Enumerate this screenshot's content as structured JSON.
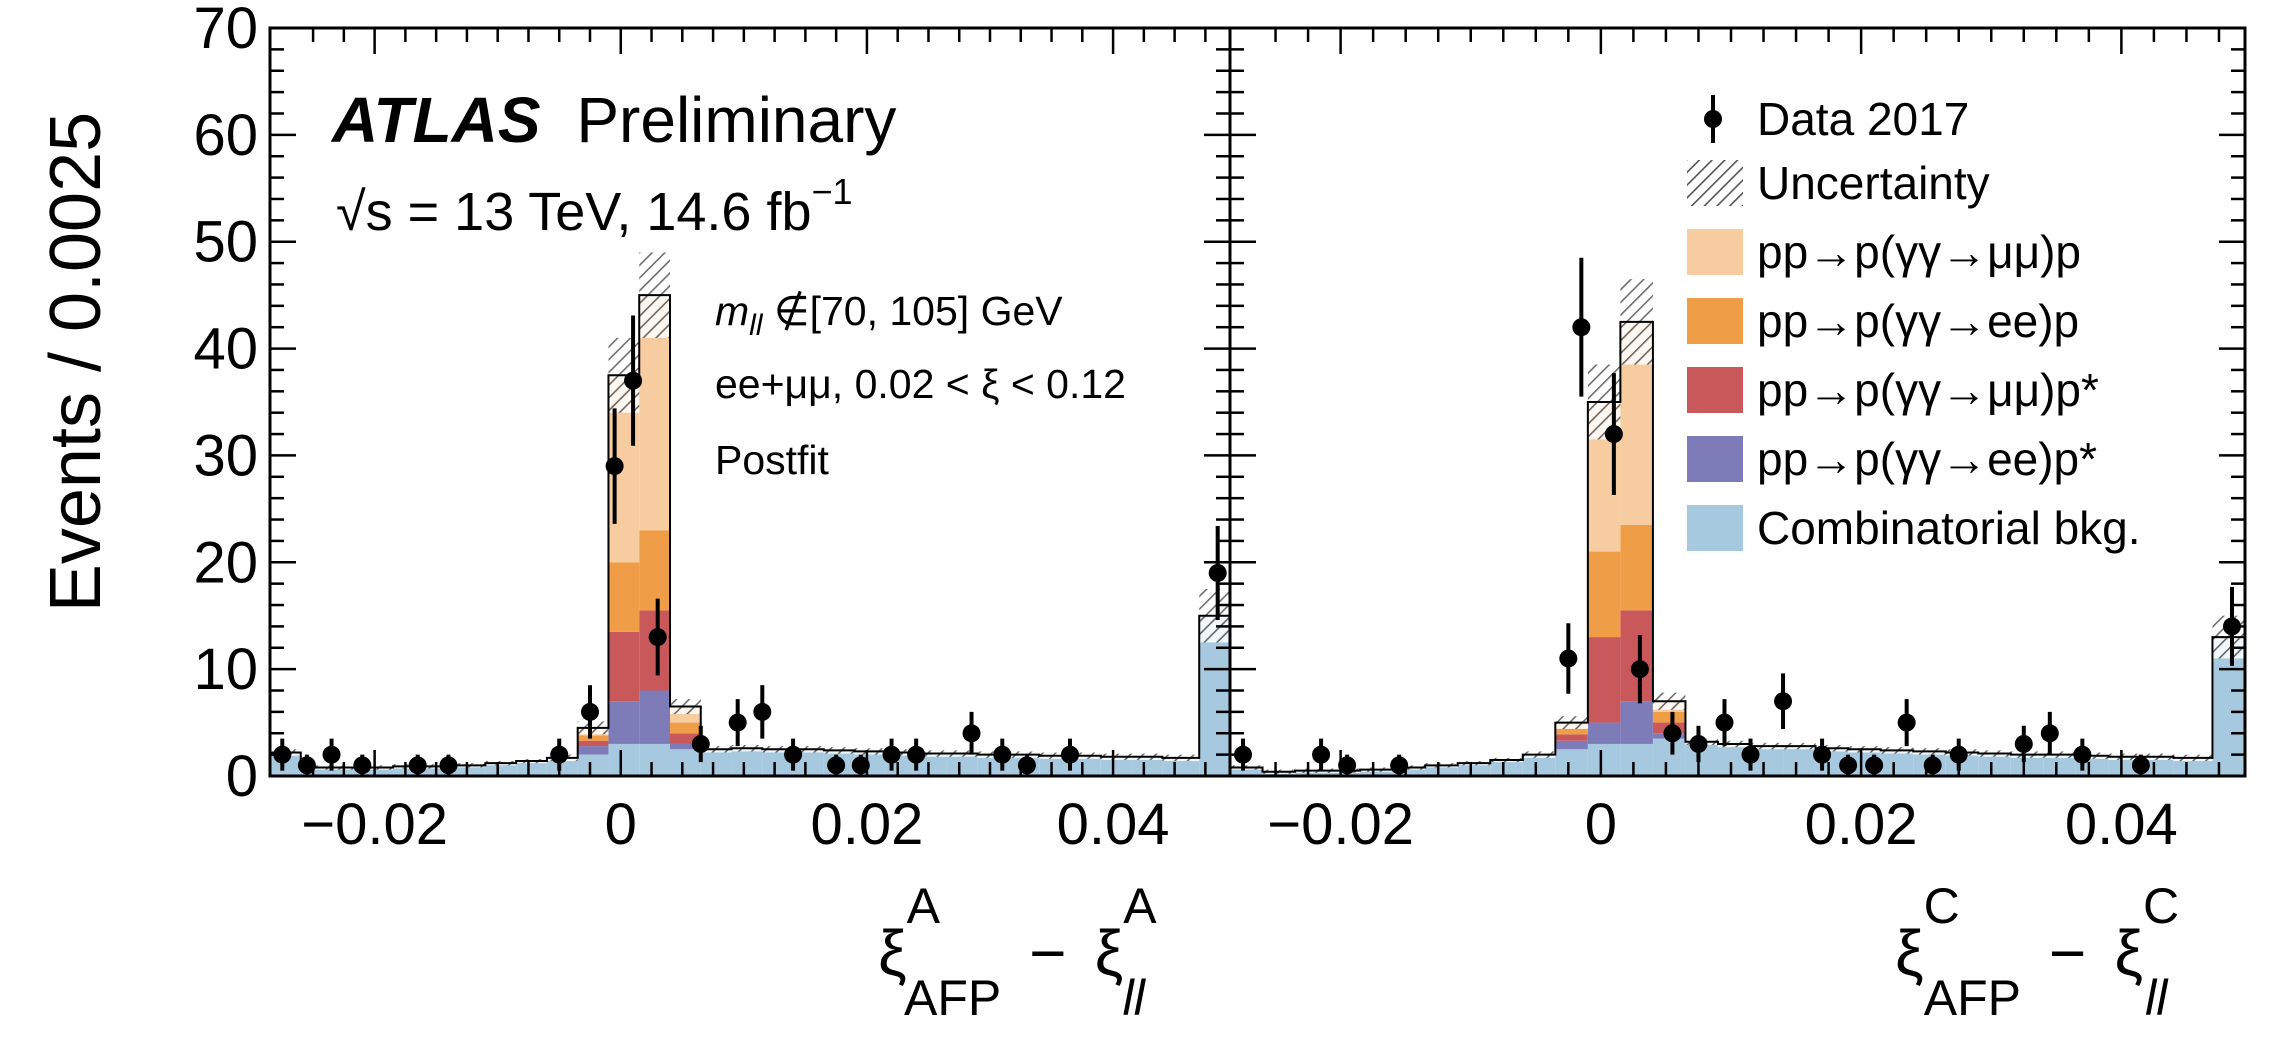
{
  "colors": {
    "mumu_elastic": "#f6cca0",
    "ee_elastic": "#f09d48",
    "mumu_single_diss": "#c8585a",
    "ee_single_diss": "#7e7cb8",
    "combinatorial": "#a7c9e0",
    "data": "#000000"
  },
  "annotations": {
    "atlas": "ATLAS",
    "preliminary": "Preliminary",
    "energy": "√s = 13 TeV, 14.6 fb",
    "energy_exp": "−1",
    "mass_cut_sym": "m",
    "mass_cut_sub": "ll",
    "mass_cut_rest": " ∉[70, 105] GeV",
    "selection": "ee+μμ, 0.02 < ξ < 0.12",
    "fit": "Postfit"
  },
  "legend": {
    "data": "Data 2017",
    "unc": "Uncertainty",
    "mumu_elastic": "pp→p(γγ→μμ)p",
    "ee_elastic": "pp→p(γγ→ee)p",
    "mumu_single_diss": "pp→p(γγ→μμ)p*",
    "ee_single_diss": "pp→p(γγ→ee)p*",
    "combinatorial": "Combinatorial bkg."
  },
  "chart_data": [
    {
      "type": "bar",
      "panel": "A",
      "ylabel": "Events / 0.0025",
      "xlabel": {
        "base": "ξ",
        "sup1": "A",
        "sub1": "AFP",
        "minus": "−",
        "sup2": "A",
        "sub2": "ll"
      },
      "xlim": [
        -0.0285,
        0.0495
      ],
      "ylim": [
        0,
        70
      ],
      "xticks": [
        -0.02,
        0,
        0.02,
        0.04
      ],
      "xtick_labels": [
        "−0.02",
        "0",
        "0.02",
        "0.04"
      ],
      "yticks": [
        0,
        10,
        20,
        30,
        40,
        50,
        60,
        70
      ],
      "ytick_labels": [
        "0",
        "10",
        "20",
        "30",
        "40",
        "50",
        "60",
        "70"
      ],
      "bin_width": 0.0025,
      "bin_edges": [
        -0.0285,
        -0.026,
        -0.0235,
        -0.021,
        -0.0185,
        -0.016,
        -0.0135,
        -0.011,
        -0.0085,
        -0.006,
        -0.0035,
        -0.001,
        0.0015,
        0.004,
        0.0065,
        0.009,
        0.0115,
        0.014,
        0.0165,
        0.019,
        0.0215,
        0.024,
        0.0265,
        0.029,
        0.0315,
        0.034,
        0.0365,
        0.039,
        0.0415,
        0.044,
        0.047,
        0.0495
      ],
      "stack": {
        "combinatorial": [
          2.2,
          0.8,
          0.8,
          0.8,
          0.9,
          0.9,
          1.0,
          1.2,
          1.4,
          1.7,
          2.0,
          3.0,
          3.0,
          2.5,
          2.5,
          2.6,
          2.5,
          2.5,
          2.4,
          2.3,
          2.2,
          2.1,
          2.1,
          2.0,
          2.0,
          1.9,
          1.9,
          1.8,
          1.8,
          1.7,
          15.0
        ],
        "ee_single_diss": [
          0,
          0,
          0,
          0,
          0,
          0,
          0,
          0,
          0,
          0,
          0.8,
          4.0,
          5.0,
          0.5,
          0,
          0,
          0,
          0,
          0,
          0,
          0,
          0,
          0,
          0,
          0,
          0,
          0,
          0,
          0,
          0,
          0
        ],
        "mumu_single_diss": [
          0,
          0,
          0,
          0,
          0,
          0,
          0,
          0,
          0,
          0,
          0.5,
          6.5,
          7.5,
          1.0,
          0,
          0,
          0,
          0,
          0,
          0,
          0,
          0,
          0,
          0,
          0,
          0,
          0,
          0,
          0,
          0,
          0
        ],
        "ee_elastic": [
          0,
          0,
          0,
          0,
          0,
          0,
          0,
          0,
          0,
          0,
          0.5,
          6.5,
          7.5,
          1.0,
          0,
          0,
          0,
          0,
          0,
          0,
          0,
          0,
          0,
          0,
          0,
          0,
          0,
          0,
          0,
          0,
          0
        ],
        "mumu_elastic": [
          0,
          0,
          0,
          0,
          0,
          0,
          0,
          0,
          0,
          0,
          0.7,
          17.5,
          22.0,
          1.5,
          0,
          0,
          0,
          0,
          0,
          0,
          0,
          0,
          0,
          0,
          0,
          0,
          0,
          0,
          0,
          0,
          0
        ]
      },
      "uncertainty": [
        0.3,
        0.2,
        0.2,
        0.2,
        0.2,
        0.2,
        0.2,
        0.2,
        0.2,
        0.3,
        0.6,
        3.5,
        4.0,
        0.7,
        0.3,
        0.3,
        0.3,
        0.3,
        0.3,
        0.3,
        0.3,
        0.3,
        0.3,
        0.3,
        0.3,
        0.3,
        0.3,
        0.3,
        0.3,
        0.3,
        2.5
      ],
      "data_points": [
        {
          "x": -0.0275,
          "y": 2,
          "err": 1.5
        },
        {
          "x": -0.0255,
          "y": 1,
          "err": 1.0
        },
        {
          "x": -0.0235,
          "y": 2,
          "err": 1.5
        },
        {
          "x": -0.021,
          "y": 1,
          "err": 1.0
        },
        {
          "x": -0.0165,
          "y": 1,
          "err": 1.0
        },
        {
          "x": -0.014,
          "y": 1,
          "err": 1.0
        },
        {
          "x": -0.005,
          "y": 2,
          "err": 1.5
        },
        {
          "x": -0.0025,
          "y": 6,
          "err": 2.5
        },
        {
          "x": -0.0005,
          "y": 29,
          "err": 5.4
        },
        {
          "x": 0.001,
          "y": 37,
          "err": 6.1
        },
        {
          "x": 0.003,
          "y": 13,
          "err": 3.6
        },
        {
          "x": 0.0065,
          "y": 3,
          "err": 1.7
        },
        {
          "x": 0.0095,
          "y": 5,
          "err": 2.2
        },
        {
          "x": 0.0115,
          "y": 6,
          "err": 2.5
        },
        {
          "x": 0.014,
          "y": 2,
          "err": 1.5
        },
        {
          "x": 0.0175,
          "y": 1,
          "err": 1.0
        },
        {
          "x": 0.0195,
          "y": 1,
          "err": 1.0
        },
        {
          "x": 0.022,
          "y": 2,
          "err": 1.5
        },
        {
          "x": 0.024,
          "y": 2,
          "err": 1.5
        },
        {
          "x": 0.0285,
          "y": 4,
          "err": 2.0
        },
        {
          "x": 0.031,
          "y": 2,
          "err": 1.5
        },
        {
          "x": 0.033,
          "y": 1,
          "err": 1.0
        },
        {
          "x": 0.0365,
          "y": 2,
          "err": 1.5
        },
        {
          "x": 0.0485,
          "y": 19,
          "err": 4.4
        }
      ]
    },
    {
      "type": "bar",
      "panel": "C",
      "xlabel": {
        "base": "ξ",
        "sup1": "C",
        "sub1": "AFP",
        "minus": "−",
        "sup2": "C",
        "sub2": "ll"
      },
      "xlim": [
        -0.0285,
        0.0495
      ],
      "ylim": [
        0,
        70
      ],
      "xticks": [
        -0.02,
        0,
        0.02,
        0.04
      ],
      "xtick_labels": [
        "−0.02",
        "0",
        "0.02",
        "0.04"
      ],
      "bin_width": 0.0025,
      "bin_edges": [
        -0.0285,
        -0.026,
        -0.0235,
        -0.021,
        -0.0185,
        -0.016,
        -0.0135,
        -0.011,
        -0.0085,
        -0.006,
        -0.0035,
        -0.001,
        0.0015,
        0.004,
        0.0065,
        0.009,
        0.0115,
        0.014,
        0.0165,
        0.019,
        0.0215,
        0.024,
        0.0265,
        0.029,
        0.0315,
        0.034,
        0.0365,
        0.039,
        0.0415,
        0.044,
        0.047,
        0.0495
      ],
      "stack": {
        "combinatorial": [
          0.8,
          0.4,
          0.5,
          0.5,
          0.6,
          0.8,
          1.0,
          1.2,
          1.5,
          2.0,
          2.5,
          3.0,
          3.0,
          3.5,
          3.2,
          3.0,
          2.8,
          2.8,
          2.6,
          2.5,
          2.4,
          2.3,
          2.2,
          2.1,
          2.0,
          2.0,
          1.9,
          1.8,
          1.8,
          1.7,
          13.0
        ],
        "ee_single_diss": [
          0,
          0,
          0,
          0,
          0,
          0,
          0,
          0,
          0,
          0,
          0.8,
          2.0,
          4.0,
          0.5,
          0,
          0,
          0,
          0,
          0,
          0,
          0,
          0,
          0,
          0,
          0,
          0,
          0,
          0,
          0,
          0,
          0
        ],
        "mumu_single_diss": [
          0,
          0,
          0,
          0,
          0,
          0,
          0,
          0,
          0,
          0,
          0.6,
          8.0,
          8.5,
          1.0,
          0,
          0,
          0,
          0,
          0,
          0,
          0,
          0,
          0,
          0,
          0,
          0,
          0,
          0,
          0,
          0,
          0
        ],
        "ee_elastic": [
          0,
          0,
          0,
          0,
          0,
          0,
          0,
          0,
          0,
          0,
          0.6,
          8.0,
          8.0,
          1.0,
          0,
          0,
          0,
          0,
          0,
          0,
          0,
          0,
          0,
          0,
          0,
          0,
          0,
          0,
          0,
          0,
          0
        ],
        "mumu_elastic": [
          0,
          0,
          0,
          0,
          0,
          0,
          0,
          0,
          0,
          0,
          0.5,
          14.0,
          19.0,
          1.0,
          0,
          0,
          0,
          0,
          0,
          0,
          0,
          0,
          0,
          0,
          0,
          0,
          0,
          0,
          0,
          0,
          0
        ]
      },
      "uncertainty": [
        0.2,
        0.2,
        0.2,
        0.2,
        0.2,
        0.2,
        0.2,
        0.2,
        0.2,
        0.3,
        0.6,
        3.5,
        4.0,
        0.8,
        0.3,
        0.3,
        0.3,
        0.3,
        0.3,
        0.3,
        0.3,
        0.3,
        0.3,
        0.3,
        0.3,
        0.3,
        0.3,
        0.3,
        0.3,
        0.3,
        2.0
      ],
      "data_points": [
        {
          "x": -0.0275,
          "y": 2,
          "err": 1.5
        },
        {
          "x": -0.0215,
          "y": 2,
          "err": 1.5
        },
        {
          "x": -0.0195,
          "y": 1,
          "err": 1.0
        },
        {
          "x": -0.0155,
          "y": 1,
          "err": 1.0
        },
        {
          "x": -0.0025,
          "y": 11,
          "err": 3.3
        },
        {
          "x": -0.0015,
          "y": 42,
          "err": 6.5
        },
        {
          "x": 0.001,
          "y": 32,
          "err": 5.7
        },
        {
          "x": 0.003,
          "y": 10,
          "err": 3.2
        },
        {
          "x": 0.0055,
          "y": 4,
          "err": 2.0
        },
        {
          "x": 0.0075,
          "y": 3,
          "err": 1.7
        },
        {
          "x": 0.0095,
          "y": 5,
          "err": 2.2
        },
        {
          "x": 0.0115,
          "y": 2,
          "err": 1.5
        },
        {
          "x": 0.014,
          "y": 7,
          "err": 2.6
        },
        {
          "x": 0.017,
          "y": 2,
          "err": 1.5
        },
        {
          "x": 0.019,
          "y": 1,
          "err": 1.0
        },
        {
          "x": 0.021,
          "y": 1,
          "err": 1.0
        },
        {
          "x": 0.0235,
          "y": 5,
          "err": 2.2
        },
        {
          "x": 0.0255,
          "y": 1,
          "err": 1.0
        },
        {
          "x": 0.0275,
          "y": 2,
          "err": 1.5
        },
        {
          "x": 0.0325,
          "y": 3,
          "err": 1.7
        },
        {
          "x": 0.0345,
          "y": 4,
          "err": 2.0
        },
        {
          "x": 0.037,
          "y": 2,
          "err": 1.5
        },
        {
          "x": 0.0415,
          "y": 1,
          "err": 1.0
        },
        {
          "x": 0.0485,
          "y": 14,
          "err": 3.7
        }
      ]
    }
  ]
}
